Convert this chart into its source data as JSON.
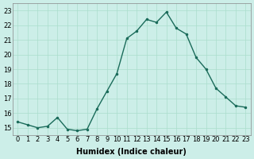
{
  "x": [
    0,
    1,
    2,
    3,
    4,
    5,
    6,
    7,
    8,
    9,
    10,
    11,
    12,
    13,
    14,
    15,
    16,
    17,
    18,
    19,
    20,
    21,
    22,
    23
  ],
  "y": [
    15.4,
    15.2,
    15.0,
    15.1,
    15.7,
    14.9,
    14.8,
    14.9,
    16.3,
    17.5,
    18.7,
    21.1,
    21.6,
    22.4,
    22.2,
    22.9,
    21.8,
    21.4,
    19.8,
    19.0,
    17.7,
    17.1,
    16.5,
    16.4
  ],
  "xlabel": "Humidex (Indice chaleur)",
  "ylabel": "",
  "xlim": [
    -0.5,
    23.5
  ],
  "ylim": [
    14.5,
    23.5
  ],
  "yticks": [
    15,
    16,
    17,
    18,
    19,
    20,
    21,
    22,
    23
  ],
  "xticks": [
    0,
    1,
    2,
    3,
    4,
    5,
    6,
    7,
    8,
    9,
    10,
    11,
    12,
    13,
    14,
    15,
    16,
    17,
    18,
    19,
    20,
    21,
    22,
    23
  ],
  "line_color": "#1a6b5a",
  "marker_color": "#1a6b5a",
  "bg_color": "#cceee8",
  "grid_color": "#aaddcc",
  "label_fontsize": 7,
  "tick_fontsize": 6
}
